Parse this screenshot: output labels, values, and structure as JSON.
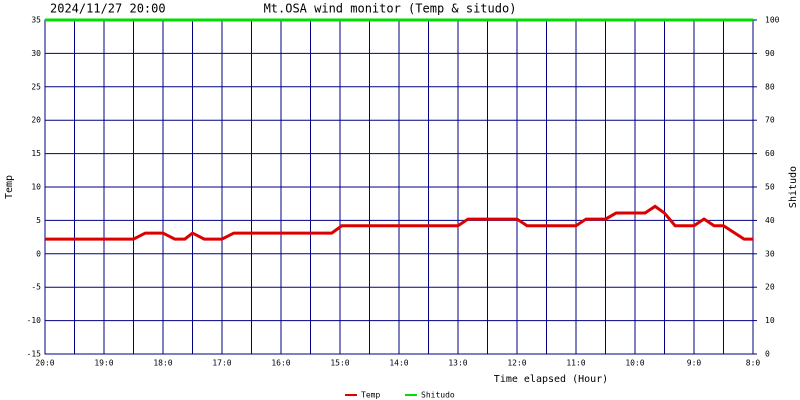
{
  "chart_data": {
    "type": "line",
    "timestamp": "2024/11/27 20:00",
    "title": "Mt.OSA wind monitor (Temp & situdo)",
    "xlabel": "Time elapsed (Hour)",
    "ylabel": "Temp",
    "y2label": "Shitudo",
    "xlim": [
      0,
      12
    ],
    "xticks": [
      {
        "value": 0,
        "label": "20:0"
      },
      {
        "value": 1,
        "label": "19:0"
      },
      {
        "value": 2,
        "label": "18:0"
      },
      {
        "value": 3,
        "label": "17:0"
      },
      {
        "value": 4,
        "label": "16:0"
      },
      {
        "value": 5,
        "label": "15:0"
      },
      {
        "value": 6,
        "label": "14:0"
      },
      {
        "value": 7,
        "label": "13:0"
      },
      {
        "value": 8,
        "label": "12:0"
      },
      {
        "value": 9,
        "label": "11:0"
      },
      {
        "value": 10,
        "label": "10:0"
      },
      {
        "value": 11,
        "label": "9:0"
      },
      {
        "value": 12,
        "label": "8:0"
      }
    ],
    "ylim": [
      -15,
      35
    ],
    "yticks": [
      -15,
      -10,
      -5,
      0,
      5,
      10,
      15,
      20,
      25,
      30,
      35
    ],
    "y2lim": [
      0,
      100
    ],
    "y2ticks": [
      0,
      10,
      20,
      30,
      40,
      50,
      60,
      70,
      80,
      90,
      100
    ],
    "grid": true,
    "grid_color": "#000080",
    "legend": "bottom",
    "series": [
      {
        "name": "Temp",
        "color": "#dd0000",
        "x": [
          0,
          1.5,
          1.7,
          2.0,
          2.2,
          2.37,
          2.5,
          2.7,
          3.0,
          3.2,
          4.86,
          5.03,
          7.0,
          7.17,
          8.0,
          8.17,
          9.0,
          9.17,
          9.5,
          9.68,
          10.17,
          10.34,
          10.5,
          10.68,
          11.0,
          11.17,
          11.34,
          11.5,
          11.85,
          12
        ],
        "values": [
          2.2,
          2.2,
          3.1,
          3.1,
          2.2,
          2.2,
          3.1,
          2.2,
          2.2,
          3.1,
          3.1,
          4.2,
          4.2,
          5.2,
          5.2,
          4.2,
          4.2,
          5.2,
          5.2,
          6.1,
          6.1,
          7.1,
          6.1,
          4.2,
          4.2,
          5.2,
          4.2,
          4.2,
          2.2,
          2.2
        ]
      },
      {
        "name": "Shitudo",
        "color": "#00dd00",
        "axis": "y2",
        "x": [
          0,
          12
        ],
        "values": [
          100,
          100
        ]
      }
    ]
  }
}
